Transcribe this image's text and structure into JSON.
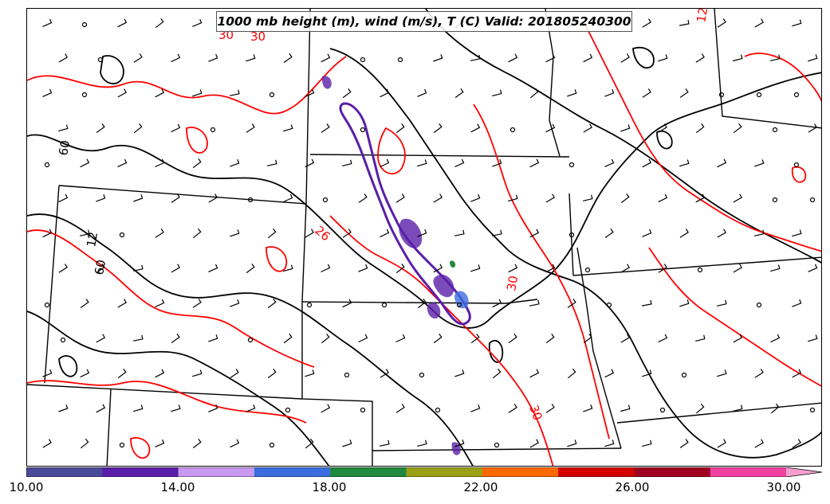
{
  "title": "1000 mb height (m), wind (m/s), T (C) Valid: 201805240300",
  "colorbar": {
    "colors": [
      "#4a4a9a",
      "#5a1fa8",
      "#c89af0",
      "#3a6ee0",
      "#1f8a3e",
      "#9aa012",
      "#ff6a00",
      "#d40000",
      "#a00020",
      "#f040a0",
      "#f7a0d0"
    ],
    "tick_labels": [
      "10.00",
      "14.00",
      "18.00",
      "22.00",
      "26.00",
      "30.00"
    ],
    "extend": "max"
  },
  "contour_labels": {
    "red": [
      "30",
      "26",
      "30",
      "30",
      "12",
      "30"
    ],
    "black": [
      "60",
      "12",
      "60"
    ]
  },
  "map_colors": {
    "height_contour": "#000000",
    "temperature_contour": "#ff0000",
    "boundary": "#000000",
    "shaded_core": "#5a1fa8"
  }
}
